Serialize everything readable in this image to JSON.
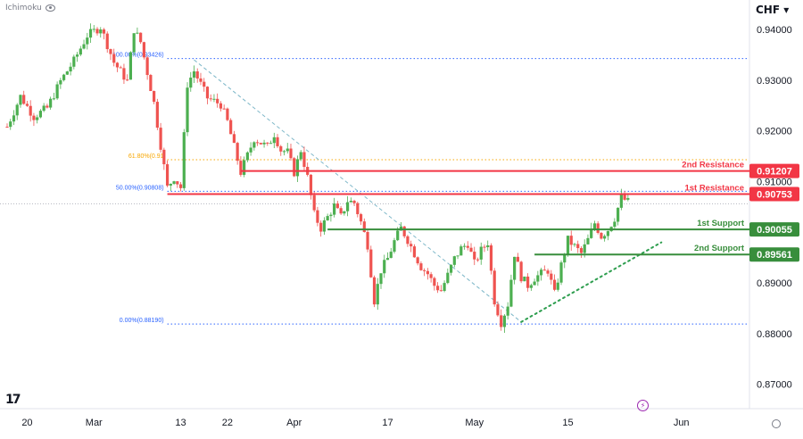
{
  "indicator_label": "Ichimoku",
  "currency_menu": "CHF",
  "currency_caret": "▾",
  "logo_text": "17",
  "bolt_glyph": "⚡",
  "colors": {
    "up": "#26a69a",
    "up_body": "#4caf50",
    "down": "#ef5350",
    "resistance": "#f23645",
    "support": "#388e3c",
    "fib_blue": "#2962ff",
    "fib_orange": "#f7a600",
    "trend_dotted": "#2e9e4f",
    "trend_dashed": "#7fb8c9",
    "axis_text": "#131722"
  },
  "chart_data": {
    "type": "candlestick",
    "ylim": [
      0.8652,
      0.9458
    ],
    "y_ticks": [
      {
        "value": 0.94,
        "label": "0.94000"
      },
      {
        "value": 0.93,
        "label": "0.93000"
      },
      {
        "value": 0.92,
        "label": "0.92000"
      },
      {
        "value": 0.91,
        "label": "0.91000"
      },
      {
        "value": 0.89,
        "label": "0.89000"
      },
      {
        "value": 0.88,
        "label": "0.88000"
      },
      {
        "value": 0.87,
        "label": "0.87000"
      }
    ],
    "x_ticks": [
      {
        "label": "20",
        "index": 3
      },
      {
        "label": "Mar",
        "index": 13
      },
      {
        "label": "13",
        "index": 26
      },
      {
        "label": "22",
        "index": 33
      },
      {
        "label": "Apr",
        "index": 43
      },
      {
        "label": "17",
        "index": 57
      },
      {
        "label": "May",
        "index": 70
      },
      {
        "label": "15",
        "index": 84
      },
      {
        "label": "Jun",
        "index": 101
      }
    ],
    "candles_count": 89,
    "x_slots": 112,
    "close_path": [
      [
        0,
        0.9208
      ],
      [
        2,
        0.9268
      ],
      [
        4,
        0.9228
      ],
      [
        6,
        0.9245
      ],
      [
        8,
        0.9298
      ],
      [
        10,
        0.9338
      ],
      [
        12,
        0.9388
      ],
      [
        14,
        0.9405
      ],
      [
        16,
        0.9335
      ],
      [
        18,
        0.9298
      ],
      [
        19,
        0.94
      ],
      [
        20,
        0.9375
      ],
      [
        22,
        0.9255
      ],
      [
        24,
        0.9088
      ],
      [
        25,
        0.9108
      ],
      [
        26,
        0.9088
      ],
      [
        27,
        0.9292
      ],
      [
        28,
        0.9318
      ],
      [
        30,
        0.9265
      ],
      [
        32,
        0.9252
      ],
      [
        33,
        0.9218
      ],
      [
        34,
        0.9168
      ],
      [
        35,
        0.9118
      ],
      [
        37,
        0.9185
      ],
      [
        39,
        0.9168
      ],
      [
        40,
        0.9194
      ],
      [
        41,
        0.9162
      ],
      [
        42,
        0.9158
      ],
      [
        43,
        0.9118
      ],
      [
        44,
        0.9162
      ],
      [
        45,
        0.9108
      ],
      [
        46,
        0.9035
      ],
      [
        47,
        0.9008
      ],
      [
        49,
        0.9052
      ],
      [
        50,
        0.903
      ],
      [
        51,
        0.9062
      ],
      [
        52,
        0.9058
      ],
      [
        53,
        0.902
      ],
      [
        54,
        0.8975
      ],
      [
        55,
        0.8865
      ],
      [
        56,
        0.8925
      ],
      [
        57,
        0.8948
      ],
      [
        58,
        0.8982
      ],
      [
        59,
        0.9008
      ],
      [
        60,
        0.8985
      ],
      [
        61,
        0.8958
      ],
      [
        62,
        0.8932
      ],
      [
        63,
        0.8918
      ],
      [
        64,
        0.8895
      ],
      [
        65,
        0.8885
      ],
      [
        66,
        0.8915
      ],
      [
        67,
        0.8948
      ],
      [
        68,
        0.8968
      ],
      [
        69,
        0.8978
      ],
      [
        70,
        0.8938
      ],
      [
        71,
        0.8964
      ],
      [
        72,
        0.898
      ],
      [
        73,
        0.8865
      ],
      [
        74,
        0.8822
      ],
      [
        75,
        0.8858
      ],
      [
        76,
        0.8958
      ],
      [
        77,
        0.8912
      ],
      [
        78,
        0.8895
      ],
      [
        79,
        0.891
      ],
      [
        80,
        0.8918
      ],
      [
        81,
        0.8925
      ],
      [
        82,
        0.8878
      ],
      [
        83,
        0.8935
      ],
      [
        84,
        0.8985
      ],
      [
        85,
        0.8972
      ],
      [
        86,
        0.8958
      ],
      [
        87,
        0.8985
      ],
      [
        88,
        0.9018
      ],
      [
        89,
        0.8992
      ],
      [
        90,
        0.9005
      ],
      [
        91,
        0.9028
      ],
      [
        92,
        0.9068
      ],
      [
        93,
        0.906
      ]
    ],
    "fib_levels": [
      {
        "label": "100.00%(0.93426)",
        "value": 0.93426,
        "color": "fib_blue",
        "start_index": 24
      },
      {
        "label": "61.80%(0.91",
        "value": 0.9143,
        "color": "fib_orange",
        "start_index": 24
      },
      {
        "label": "50.00%(0.90808)",
        "value": 0.90808,
        "color": "fib_blue",
        "start_index": 24
      },
      {
        "label": "0.00%(0.88190)",
        "value": 0.8819,
        "color": "fib_blue",
        "start_index": 24
      }
    ],
    "current_price_line": 0.9056,
    "levels": [
      {
        "name": "2nd Resistance",
        "value": 0.91207,
        "label": "0.91207",
        "kind": "resistance",
        "start_index": 35
      },
      {
        "name": "1st Resistance",
        "value": 0.90753,
        "label": "0.90753",
        "kind": "resistance",
        "start_index": 24
      },
      {
        "name": "1st Support",
        "value": 0.90055,
        "label": "0.90055",
        "kind": "support",
        "start_index": 48
      },
      {
        "name": "2nd Support",
        "value": 0.89561,
        "label": "0.89561",
        "kind": "support",
        "start_index": 79
      }
    ],
    "trendline_dotted": {
      "from": [
        77,
        0.8823
      ],
      "to": [
        98,
        0.898
      ]
    },
    "trendline_dashed": {
      "from": [
        28,
        0.934
      ],
      "to": [
        77,
        0.8823
      ]
    }
  }
}
